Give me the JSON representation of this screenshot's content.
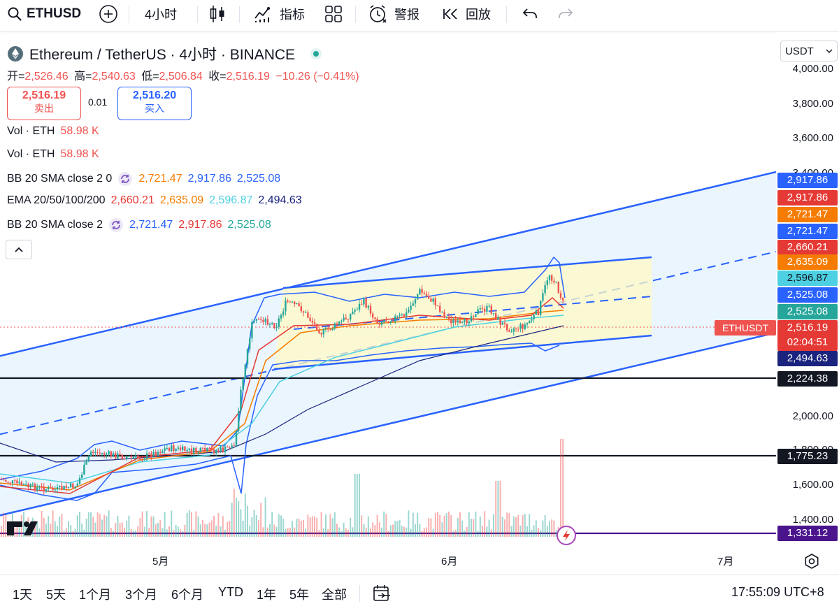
{
  "toolbar": {
    "symbol": "ETHUSD",
    "interval": "4小时",
    "indicators_label": "指标",
    "alert_label": "警报",
    "replay_label": "回放"
  },
  "header": {
    "title": "Ethereum / TetherUS · 4小时 · BINANCE",
    "ohlc": {
      "open_label": "开=",
      "open": "2,526.46",
      "high_label": "高=",
      "high": "2,540.63",
      "low_label": "低=",
      "low": "2,506.84",
      "close_label": "收=",
      "close": "2,516.19",
      "change": "−10.26 (−0.41%)"
    },
    "sell": {
      "price": "2,516.19",
      "label": "卖出"
    },
    "spread": "0.01",
    "buy": {
      "price": "2,516.20",
      "label": "买入"
    }
  },
  "currency_selector": "USDT",
  "legends": [
    {
      "label": "Vol · ETH",
      "values": [
        "58.98 K"
      ],
      "colors": [
        "#ef5350"
      ]
    },
    {
      "label": "Vol · ETH",
      "values": [
        "58.98 K"
      ],
      "colors": [
        "#ef5350"
      ]
    },
    {
      "label": "BB 20 SMA close 2 0",
      "values": [
        "2,721.47",
        "2,917.86",
        "2,525.08"
      ],
      "colors": [
        "#f57c00",
        "#2962ff",
        "#2962ff"
      ]
    },
    {
      "label": "EMA 20/50/100/200",
      "values": [
        "2,660.21",
        "2,635.09",
        "2,596.87",
        "2,494.63"
      ],
      "colors": [
        "#e53935",
        "#f57c00",
        "#4dd0e1",
        "#1a237e"
      ]
    },
    {
      "label": "BB 20 SMA close 2",
      "values": [
        "2,721.47",
        "2,917.86",
        "2,525.08"
      ],
      "colors": [
        "#2962ff",
        "#e53935",
        "#26a69a"
      ]
    }
  ],
  "price_axis": [
    {
      "label": "4,000.00",
      "value": 4000
    },
    {
      "label": "3,800.00",
      "value": 3800
    },
    {
      "label": "3,600.00",
      "value": 3600
    },
    {
      "label": "3,400.00",
      "value": 3400
    },
    {
      "label": "2,000.00",
      "value": 2000
    },
    {
      "label": "1,800.00",
      "value": 1800
    },
    {
      "label": "1,600.00",
      "value": 1600
    },
    {
      "label": "1,400.00",
      "value": 1400
    }
  ],
  "price_tags": [
    {
      "text": "2,917.86",
      "color": "#2962ff"
    },
    {
      "text": "2,917.86",
      "color": "#e53935"
    },
    {
      "text": "2,721.47",
      "color": "#f57c00"
    },
    {
      "text": "2,721.47",
      "color": "#2962ff"
    },
    {
      "text": "2,660.21",
      "color": "#e53935"
    },
    {
      "text": "2,635.09",
      "color": "#f57c00"
    },
    {
      "text": "2,596.87",
      "color": "#4dd0e1",
      "textColor": "#131722"
    },
    {
      "text": "2,525.08",
      "color": "#2962ff"
    },
    {
      "text": "2,525.08",
      "color": "#26a69a"
    },
    {
      "text": "2,516.19",
      "color": "#e53935",
      "sub": "02:04:51"
    },
    {
      "text": "2,494.63",
      "color": "#1a237e"
    },
    {
      "text": "2,224.38",
      "color": "#131722"
    },
    {
      "text": "1,775.23",
      "color": "#131722"
    },
    {
      "text": "1,331.12",
      "color": "#4a148c"
    }
  ],
  "symbol_tag": "ETHUSDT",
  "time_axis": [
    "5月",
    "6月",
    "7月"
  ],
  "ranges": [
    "1天",
    "5天",
    "1个月",
    "3个月",
    "6个月",
    "YTD",
    "1年",
    "5年",
    "全部"
  ],
  "clock": "17:55:09 UTC+8",
  "colors": {
    "up": "#26a69a",
    "down": "#ef5350",
    "line": "#2962ff",
    "channel_fill": "#e3f2fd",
    "range_fill": "#fffde7"
  }
}
